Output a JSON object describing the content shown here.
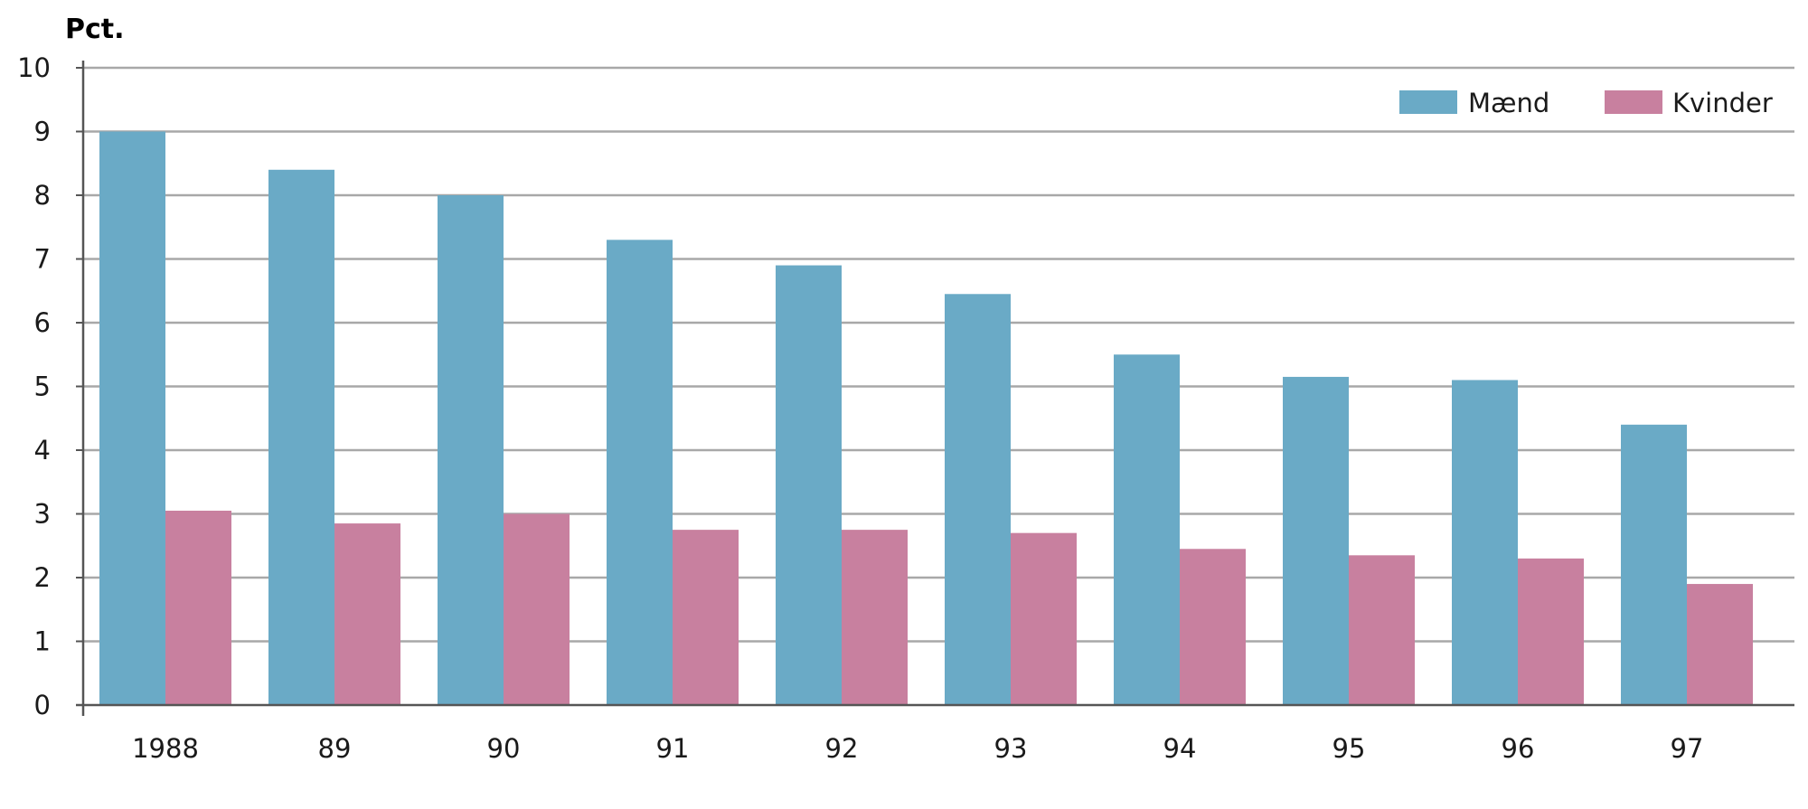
{
  "chart_data": {
    "type": "bar",
    "title": "",
    "xlabel": "",
    "ylabel": "Pct.",
    "categories": [
      "1988",
      "89",
      "90",
      "91",
      "92",
      "93",
      "94",
      "95",
      "96",
      "97"
    ],
    "series": [
      {
        "name": "Mænd",
        "color": "#6aaac6",
        "values": [
          9.0,
          8.4,
          8.0,
          7.3,
          6.9,
          6.45,
          5.5,
          5.15,
          5.1,
          4.4
        ]
      },
      {
        "name": "Kvinder",
        "color": "#c8809f",
        "values": [
          3.05,
          2.85,
          3.0,
          2.75,
          2.75,
          2.7,
          2.45,
          2.35,
          2.3,
          1.9
        ]
      }
    ],
    "ylim": [
      0,
      10
    ],
    "yticks": [
      "0",
      "1",
      "2",
      "3",
      "4",
      "5",
      "6",
      "7",
      "8",
      "9",
      "10"
    ],
    "grid": true,
    "legend_position": "top-right"
  }
}
